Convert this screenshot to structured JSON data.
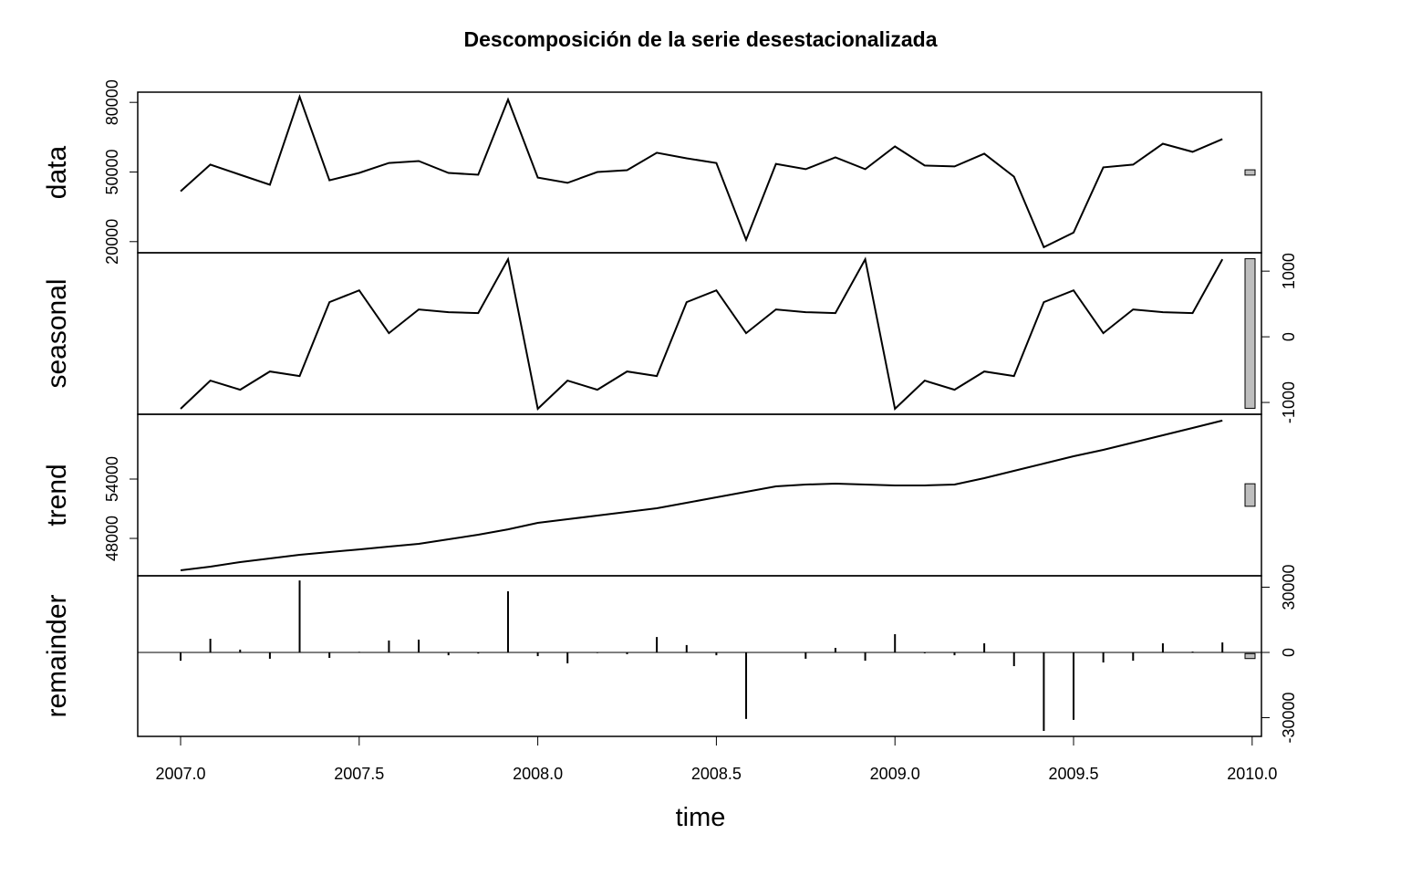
{
  "chart_data": {
    "type": "line",
    "title": "Descomposición de la serie desestacionalizada",
    "xlabel": "time",
    "xlim": [
      2006.88,
      2010.026
    ],
    "xticks": [
      {
        "value": 2007,
        "label": "2007.0"
      },
      2007.5,
      {
        "value": 2008,
        "label": "2008.0"
      },
      2008.5,
      {
        "value": 2009,
        "label": "2009.0"
      },
      2009.5,
      {
        "value": 2010,
        "label": "2010.0"
      }
    ],
    "x": [
      2007,
      2007.0833,
      2007.1667,
      2007.25,
      2007.3333,
      2007.4167,
      2007.5,
      2007.5833,
      2007.6667,
      2007.75,
      2007.8333,
      2007.9167,
      2008,
      2008.0833,
      2008.1667,
      2008.25,
      2008.3333,
      2008.4167,
      2008.5,
      2008.5833,
      2008.6667,
      2008.75,
      2008.8333,
      2008.9167,
      2009,
      2009.0833,
      2009.1667,
      2009.25,
      2009.3333,
      2009.4167,
      2009.5,
      2009.5833,
      2009.6667,
      2009.75,
      2009.8333,
      2009.9167
    ],
    "panels": [
      {
        "name": "data",
        "type": "line",
        "axis_side": "left",
        "ylim": [
          15200,
          84400
        ],
        "yticks": [
          20000,
          50000,
          80000
        ],
        "values": [
          41700,
          53200,
          48800,
          44500,
          82400,
          46400,
          49600,
          53900,
          54700,
          49600,
          48800,
          81200,
          47600,
          45300,
          50000,
          50800,
          58300,
          55900,
          53900,
          20800,
          53500,
          51200,
          56300,
          51200,
          61000,
          52800,
          52400,
          57900,
          48000,
          17600,
          23900,
          52000,
          53200,
          62200,
          58700,
          64200
        ]
      },
      {
        "name": "seasonal",
        "type": "line",
        "axis_side": "right",
        "ylim": [
          -1180,
          1280
        ],
        "yticks": [
          -1000,
          0,
          1000
        ],
        "values": [
          -1097,
          -667,
          -806,
          -528,
          -597,
          528,
          708,
          56,
          417,
          375,
          361,
          1181,
          -1097,
          -667,
          -806,
          -528,
          -597,
          528,
          708,
          56,
          417,
          375,
          361,
          1181,
          -1097,
          -667,
          -806,
          -528,
          -597,
          528,
          708,
          56,
          417,
          375,
          361,
          1181
        ]
      },
      {
        "name": "trend",
        "type": "line",
        "axis_side": "left",
        "ylim": [
          44220,
          60550
        ],
        "yticks": [
          48000,
          54000
        ],
        "values": [
          44770,
          45140,
          45600,
          45970,
          46340,
          46620,
          46890,
          47170,
          47450,
          47910,
          48370,
          48920,
          49570,
          49940,
          50310,
          50680,
          51050,
          51600,
          52150,
          52710,
          53260,
          53450,
          53540,
          53450,
          53350,
          53350,
          53450,
          54090,
          54830,
          55570,
          56310,
          56950,
          57690,
          58430,
          59170,
          59910
        ]
      },
      {
        "name": "remainder",
        "type": "bar",
        "axis_side": "right",
        "ylim": [
          -38600,
          35250
        ],
        "yticks": [
          -30000,
          0,
          30000
        ],
        "values": [
          -3800,
          6300,
          1300,
          -2900,
          33100,
          -2500,
          300,
          5500,
          5900,
          -1300,
          -500,
          28100,
          -1700,
          -5000,
          -300,
          -800,
          7100,
          3400,
          -1300,
          -30600,
          -200,
          -2900,
          2100,
          -3800,
          8400,
          -400,
          -1300,
          4200,
          -6300,
          -36100,
          -31000,
          -4600,
          -3800,
          4200,
          400,
          4600
        ]
      }
    ]
  }
}
